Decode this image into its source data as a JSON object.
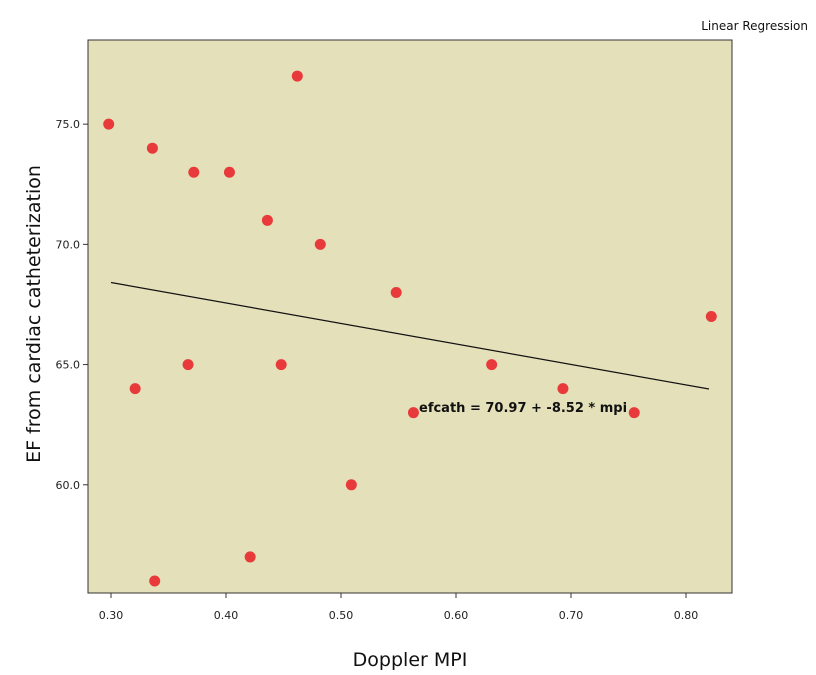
{
  "chart_data": {
    "type": "scatter",
    "title": "Linear Regression",
    "xlabel": "Doppler MPI",
    "ylabel": "EF from cardiac catheterization",
    "xlim": [
      0.28,
      0.84
    ],
    "ylim": [
      55.5,
      78.5
    ],
    "xticks": [
      "0.30",
      "0.40",
      "0.50",
      "0.60",
      "0.70",
      "0.80"
    ],
    "yticks": [
      "75.0",
      "70.0",
      "65.0",
      "60.0"
    ],
    "points": [
      {
        "x": 0.298,
        "y": 75
      },
      {
        "x": 0.321,
        "y": 64
      },
      {
        "x": 0.336,
        "y": 74
      },
      {
        "x": 0.338,
        "y": 56
      },
      {
        "x": 0.367,
        "y": 65
      },
      {
        "x": 0.372,
        "y": 73
      },
      {
        "x": 0.403,
        "y": 73
      },
      {
        "x": 0.421,
        "y": 57
      },
      {
        "x": 0.436,
        "y": 71
      },
      {
        "x": 0.448,
        "y": 65
      },
      {
        "x": 0.462,
        "y": 77
      },
      {
        "x": 0.482,
        "y": 70
      },
      {
        "x": 0.509,
        "y": 60
      },
      {
        "x": 0.548,
        "y": 68
      },
      {
        "x": 0.563,
        "y": 63
      },
      {
        "x": 0.631,
        "y": 65
      },
      {
        "x": 0.693,
        "y": 64
      },
      {
        "x": 0.755,
        "y": 63
      },
      {
        "x": 0.822,
        "y": 67
      }
    ],
    "regression": {
      "intercept": 70.97,
      "slope": -8.52,
      "x_start": 0.3,
      "x_end": 0.82
    },
    "equation_label": "efcath = 70.97 + -8.52 * mpi",
    "background_color": "#e4e0ba",
    "point_color": "#e83a3a",
    "line_color": "#111111",
    "grid": false
  }
}
